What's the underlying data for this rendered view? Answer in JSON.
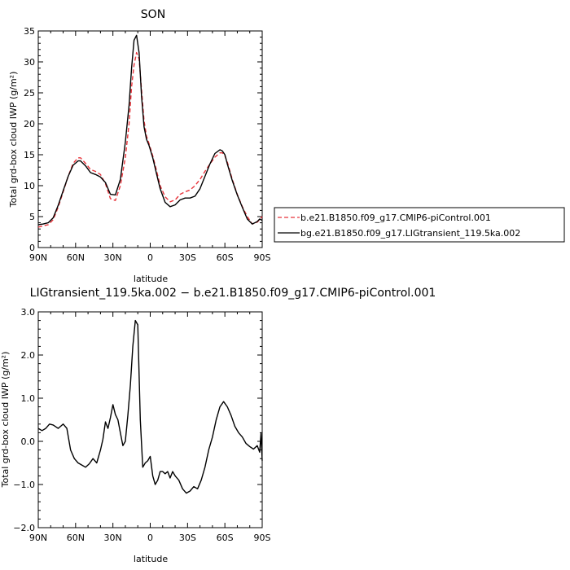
{
  "chart_data": [
    {
      "type": "line",
      "title": "SON",
      "xlabel": "latitude",
      "ylabel": "Total grd-box cloud IWP (g/m²)",
      "xlim": [
        90,
        -90
      ],
      "ylim": [
        0,
        35
      ],
      "x_ticks": [
        {
          "value": 90,
          "label": "90N"
        },
        {
          "value": 60,
          "label": "60N"
        },
        {
          "value": 30,
          "label": "30N"
        },
        {
          "value": 0,
          "label": "0"
        },
        {
          "value": -30,
          "label": "30S"
        },
        {
          "value": -60,
          "label": "60S"
        },
        {
          "value": -90,
          "label": "90S"
        }
      ],
      "y_ticks": [
        {
          "value": 0,
          "label": "0"
        },
        {
          "value": 5,
          "label": "5"
        },
        {
          "value": 10,
          "label": "10"
        },
        {
          "value": 15,
          "label": "15"
        },
        {
          "value": 20,
          "label": "20"
        },
        {
          "value": 25,
          "label": "25"
        },
        {
          "value": 30,
          "label": "30"
        },
        {
          "value": 35,
          "label": "35"
        }
      ],
      "legend_position": "right",
      "series": [
        {
          "name": "b.e21.B1850.f09_g17.CMIP6-piControl.001",
          "color": "#e8333a",
          "dash": "dashed",
          "x": [
            90,
            86,
            82,
            78,
            74,
            70,
            66,
            62,
            58,
            56,
            52,
            48,
            44,
            40,
            36,
            32,
            28,
            24,
            20,
            17,
            15,
            13,
            11,
            9,
            7,
            5,
            3,
            1,
            -2,
            -5,
            -8,
            -12,
            -16,
            -20,
            -24,
            -28,
            -32,
            -36,
            -40,
            -44,
            -48,
            -52,
            -56,
            -58,
            -60,
            -62,
            -66,
            -70,
            -74,
            -78,
            -82,
            -86,
            -88,
            -90
          ],
          "y": [
            3.3,
            3.5,
            3.7,
            4.5,
            6.5,
            9.0,
            11.5,
            13.6,
            14.5,
            14.5,
            13.6,
            12.6,
            12.3,
            11.8,
            10.3,
            7.9,
            7.6,
            10.0,
            14.5,
            20.0,
            26.0,
            29.5,
            31.5,
            30.5,
            25.5,
            20.5,
            18.0,
            16.8,
            14.8,
            12.5,
            10.0,
            8.2,
            7.4,
            7.7,
            8.6,
            9.0,
            9.3,
            10.0,
            11.0,
            12.3,
            13.5,
            14.6,
            15.3,
            15.3,
            14.8,
            13.8,
            11.0,
            8.6,
            6.6,
            5.0,
            3.8,
            4.1,
            4.5,
            5.0
          ]
        },
        {
          "name": "bg.e21.B1850.f09_g17.LIGtransient_119.5ka.002",
          "color": "#000000",
          "dash": "solid",
          "x": [
            90,
            86,
            82,
            78,
            74,
            70,
            66,
            62,
            58,
            56,
            52,
            48,
            44,
            40,
            36,
            32,
            28,
            24,
            20,
            17,
            15,
            13,
            11,
            9,
            7,
            5,
            3,
            1,
            -2,
            -5,
            -8,
            -12,
            -16,
            -20,
            -24,
            -28,
            -32,
            -36,
            -40,
            -44,
            -48,
            -52,
            -56,
            -58,
            -60,
            -62,
            -66,
            -70,
            -74,
            -78,
            -82,
            -86,
            -88,
            -90
          ],
          "y": [
            3.7,
            3.8,
            4.0,
            4.8,
            6.8,
            9.2,
            11.5,
            13.3,
            14.0,
            14.0,
            13.2,
            12.1,
            11.8,
            11.4,
            10.5,
            8.6,
            8.5,
            11.0,
            17.0,
            23.0,
            29.0,
            33.5,
            34.3,
            31.5,
            24.5,
            19.5,
            17.5,
            16.5,
            14.5,
            12.0,
            9.5,
            7.3,
            6.6,
            6.9,
            7.7,
            8.0,
            8.0,
            8.3,
            9.5,
            11.5,
            13.5,
            15.2,
            15.8,
            15.6,
            15.0,
            13.5,
            10.8,
            8.5,
            6.5,
            4.6,
            3.8,
            4.2,
            4.6,
            4.4
          ]
        }
      ]
    },
    {
      "type": "line",
      "title": "LIGtransient_119.5ka.002 − b.e21.B1850.f09_g17.CMIP6-piControl.001",
      "xlabel": "latitude",
      "ylabel": "Total grd-box cloud IWP (g/m²)",
      "xlim": [
        90,
        -90
      ],
      "ylim": [
        -2.0,
        3.0
      ],
      "x_ticks": [
        {
          "value": 90,
          "label": "90N"
        },
        {
          "value": 60,
          "label": "60N"
        },
        {
          "value": 30,
          "label": "30N"
        },
        {
          "value": 0,
          "label": "0"
        },
        {
          "value": -30,
          "label": "30S"
        },
        {
          "value": -60,
          "label": "60S"
        },
        {
          "value": -90,
          "label": "90S"
        }
      ],
      "y_ticks": [
        {
          "value": -2.0,
          "label": "−2.0"
        },
        {
          "value": -1.0,
          "label": "−1.0"
        },
        {
          "value": 0.0,
          "label": "0.0"
        },
        {
          "value": 1.0,
          "label": "1.0"
        },
        {
          "value": 2.0,
          "label": "2.0"
        },
        {
          "value": 3.0,
          "label": "3.0"
        }
      ],
      "series": [
        {
          "color": "#000000",
          "dash": "solid",
          "x": [
            90,
            87,
            84,
            81,
            78,
            74,
            70,
            67,
            64,
            61,
            58,
            55,
            52,
            49,
            46,
            43,
            40,
            38,
            36,
            34,
            32,
            30,
            28,
            26,
            24,
            22,
            20,
            18,
            16,
            14,
            12,
            10,
            8,
            6,
            4,
            2,
            0,
            -2,
            -4,
            -6,
            -8,
            -10,
            -12,
            -14,
            -16,
            -18,
            -20,
            -23,
            -26,
            -29,
            -32,
            -35,
            -38,
            -41,
            -44,
            -47,
            -50,
            -53,
            -56,
            -59,
            -62,
            -65,
            -68,
            -71,
            -74,
            -77,
            -80,
            -83,
            -86,
            -88,
            -89,
            -90
          ],
          "y": [
            0.3,
            0.25,
            0.3,
            0.4,
            0.38,
            0.3,
            0.4,
            0.3,
            -0.2,
            -0.4,
            -0.5,
            -0.55,
            -0.6,
            -0.52,
            -0.4,
            -0.5,
            -0.2,
            0.05,
            0.45,
            0.3,
            0.55,
            0.85,
            0.62,
            0.5,
            0.2,
            -0.1,
            0.0,
            0.6,
            1.3,
            2.2,
            2.8,
            2.7,
            0.5,
            -0.6,
            -0.5,
            -0.45,
            -0.35,
            -0.8,
            -1.0,
            -0.9,
            -0.7,
            -0.7,
            -0.75,
            -0.7,
            -0.85,
            -0.7,
            -0.8,
            -0.9,
            -1.1,
            -1.2,
            -1.15,
            -1.05,
            -1.1,
            -0.9,
            -0.6,
            -0.2,
            0.1,
            0.5,
            0.8,
            0.92,
            0.8,
            0.6,
            0.35,
            0.2,
            0.1,
            -0.05,
            -0.12,
            -0.18,
            -0.1,
            -0.25,
            0.18,
            -0.45
          ]
        }
      ]
    }
  ]
}
